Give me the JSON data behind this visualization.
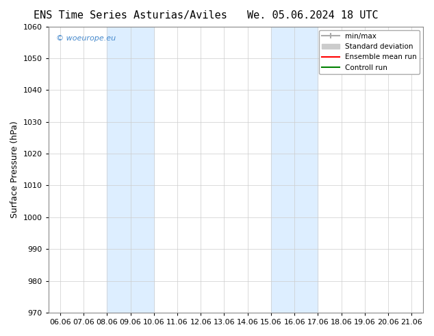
{
  "title_left": "ENS Time Series Asturias/Aviles",
  "title_right": "We. 05.06.2024 18 UTC",
  "ylabel": "Surface Pressure (hPa)",
  "ylim": [
    970,
    1060
  ],
  "yticks": [
    970,
    980,
    990,
    1000,
    1010,
    1020,
    1030,
    1040,
    1050,
    1060
  ],
  "xtick_labels": [
    "06.06",
    "07.06",
    "08.06",
    "09.06",
    "10.06",
    "11.06",
    "12.06",
    "13.06",
    "14.06",
    "15.06",
    "16.06",
    "17.06",
    "18.06",
    "19.06",
    "20.06",
    "21.06"
  ],
  "shaded_bands": [
    {
      "x_start_label": "08.06",
      "x_end_label": "10.06"
    },
    {
      "x_start_label": "15.06",
      "x_end_label": "17.06"
    }
  ],
  "shaded_color": "#DDEEFF",
  "watermark_text": "© woeurope.eu",
  "watermark_color": "#4488CC",
  "legend_entries": [
    {
      "label": "min/max",
      "color": "#AAAAAA",
      "style": "minmax"
    },
    {
      "label": "Standard deviation",
      "color": "#CCCCCC",
      "style": "stddev"
    },
    {
      "label": "Ensemble mean run",
      "color": "red",
      "style": "line"
    },
    {
      "label": "Controll run",
      "color": "green",
      "style": "line"
    }
  ],
  "background_color": "#FFFFFF",
  "grid_color": "#CCCCCC",
  "title_fontsize": 11,
  "axis_fontsize": 9,
  "tick_fontsize": 8
}
